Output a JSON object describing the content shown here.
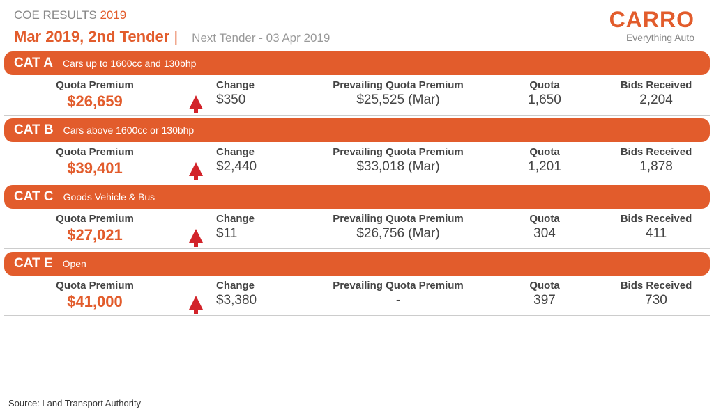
{
  "header": {
    "top_title_prefix": "COE RESULTS ",
    "top_title_year": "2019",
    "tender_title": "Mar 2019, 2nd Tender",
    "pipe": " |",
    "next_tender": "Next Tender - 03 Apr 2019"
  },
  "brand": {
    "logo": "CARRO",
    "tagline": "Everything Auto",
    "color": "#e25c2c"
  },
  "labels": {
    "quota_premium": "Quota Premium",
    "change": "Change",
    "prevailing": "Prevailing Quota Premium",
    "quota": "Quota",
    "bids": "Bids Received"
  },
  "categories": [
    {
      "name": "CAT A",
      "desc": "Cars up to 1600cc and 130bhp",
      "quota_premium": "$26,659",
      "change_dir": "up",
      "change": "$350",
      "prevailing": "$25,525 (Mar)",
      "quota": "1,650",
      "bids": "2,204"
    },
    {
      "name": "CAT B",
      "desc": "Cars above 1600cc or 130bhp",
      "quota_premium": "$39,401",
      "change_dir": "up",
      "change": "$2,440",
      "prevailing": "$33,018 (Mar)",
      "quota": "1,201",
      "bids": "1,878"
    },
    {
      "name": "CAT C",
      "desc": "Goods Vehicle & Bus",
      "quota_premium": "$27,021",
      "change_dir": "up",
      "change": "$11",
      "prevailing": "$26,756 (Mar)",
      "quota": "304",
      "bids": "411"
    },
    {
      "name": "CAT E",
      "desc": "Open",
      "quota_premium": "$41,000",
      "change_dir": "up",
      "change": "$3,380",
      "prevailing": "-",
      "quota": "397",
      "bids": "730"
    }
  ],
  "source": "Source: Land Transport Authority",
  "styling": {
    "accent_color": "#e25c2c",
    "arrow_color": "#d2232a",
    "text_color": "#444444",
    "muted_color": "#888888",
    "divider_color": "#cccccc",
    "header_bg": "#e25c2c",
    "header_text": "#ffffff",
    "font_family": "Arial",
    "qp_font_size": 22,
    "value_font_size": 19,
    "label_font_size": 15
  }
}
